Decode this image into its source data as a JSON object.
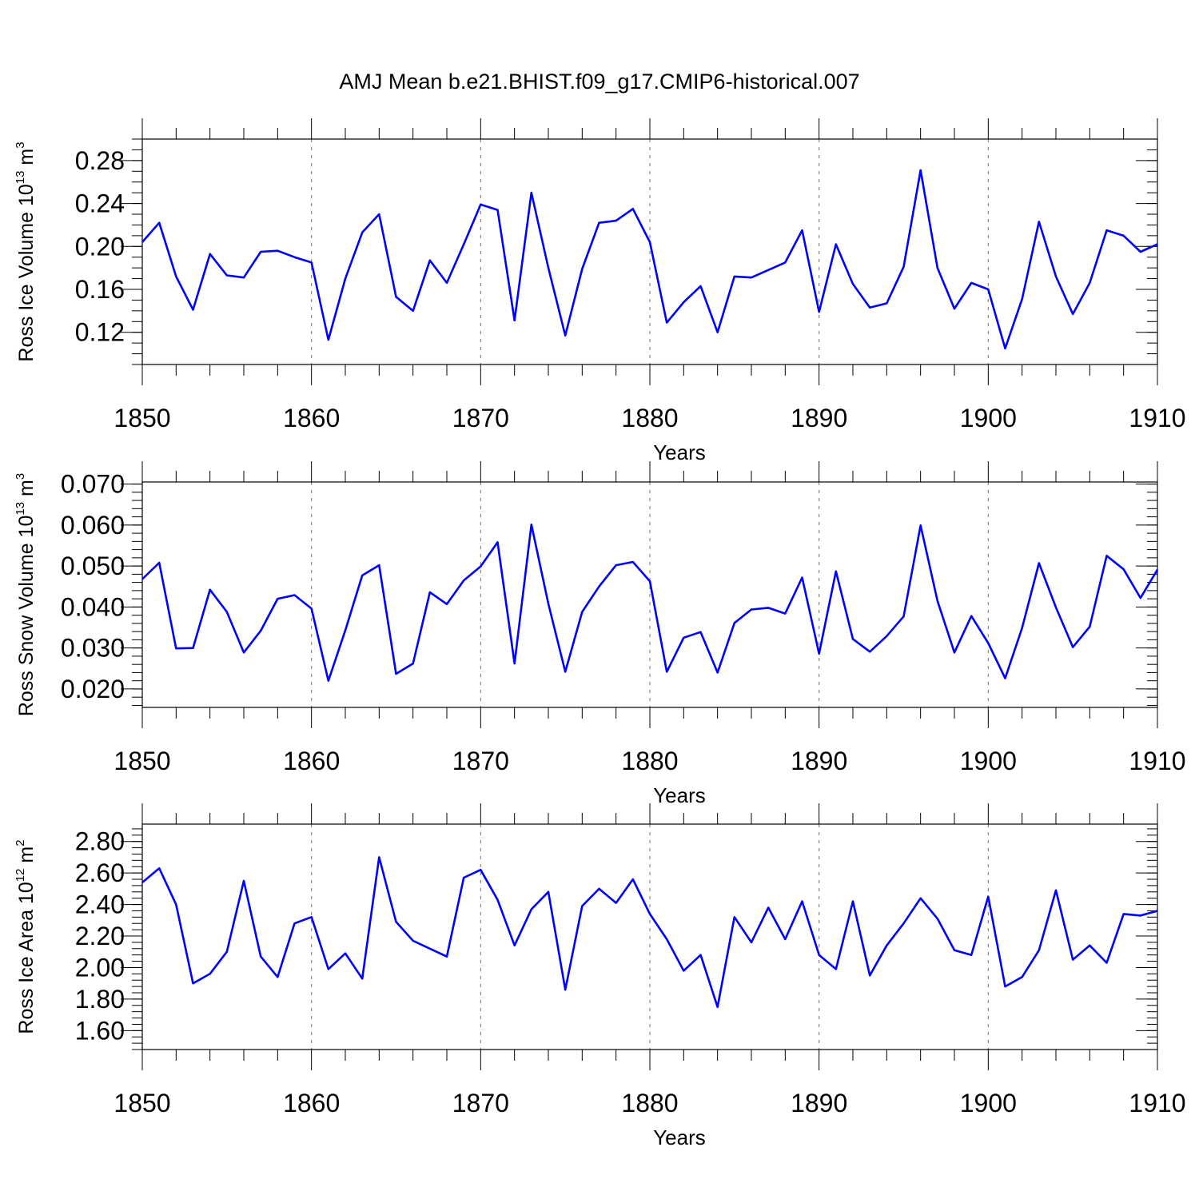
{
  "title": "AMJ Mean b.e21.BHIST.f09_g17.CMIP6-historical.007",
  "chart_data": [
    {
      "type": "line",
      "ylabel": {
        "base": "Ross Ice Volume 10",
        "sup1": "13",
        "mid": " m",
        "sup2": "3"
      },
      "xlabel": "Years",
      "xlim": [
        1850,
        1910
      ],
      "ylim": [
        0.09,
        0.3
      ],
      "y_major_ticks": [
        0.12,
        0.16,
        0.2,
        0.24,
        0.28
      ],
      "y_tick_labels": [
        "0.12",
        "0.16",
        "0.20",
        "0.24",
        "0.28"
      ],
      "y_minor_step": 0.01,
      "x_major_ticks": [
        1850,
        1860,
        1870,
        1880,
        1890,
        1900,
        1910
      ],
      "x_tick_labels": [
        "1850",
        "1860",
        "1870",
        "1880",
        "1890",
        "1900",
        "1910"
      ],
      "gridlines_x": [
        1860,
        1870,
        1880,
        1890,
        1900
      ],
      "color": "#0000ff",
      "x": [
        1850,
        1851,
        1852,
        1853,
        1854,
        1855,
        1856,
        1857,
        1858,
        1859,
        1860,
        1861,
        1862,
        1863,
        1864,
        1865,
        1866,
        1867,
        1868,
        1869,
        1870,
        1871,
        1872,
        1873,
        1874,
        1875,
        1876,
        1877,
        1878,
        1879,
        1880,
        1881,
        1882,
        1883,
        1884,
        1885,
        1886,
        1887,
        1888,
        1889,
        1890,
        1891,
        1892,
        1893,
        1894,
        1895,
        1896,
        1897,
        1898,
        1899,
        1900,
        1901,
        1902,
        1903,
        1904,
        1905,
        1906,
        1907,
        1908,
        1909,
        1910
      ],
      "y": [
        0.204,
        0.222,
        0.172,
        0.141,
        0.193,
        0.173,
        0.171,
        0.195,
        0.196,
        0.19,
        0.185,
        0.113,
        0.17,
        0.213,
        0.23,
        0.153,
        0.14,
        0.187,
        0.166,
        0.202,
        0.239,
        0.234,
        0.131,
        0.25,
        0.18,
        0.117,
        0.179,
        0.222,
        0.224,
        0.235,
        0.204,
        0.129,
        0.148,
        0.163,
        0.12,
        0.172,
        0.171,
        0.178,
        0.185,
        0.215,
        0.139,
        0.202,
        0.165,
        0.143,
        0.147,
        0.181,
        0.271,
        0.18,
        0.142,
        0.166,
        0.16,
        0.105,
        0.151,
        0.223,
        0.172,
        0.137,
        0.166,
        0.215,
        0.21,
        0.195,
        0.202
      ]
    },
    {
      "type": "line",
      "ylabel": {
        "base": "Ross Snow Volume 10",
        "sup1": "13",
        "mid": " m",
        "sup2": "3"
      },
      "xlabel": "Years",
      "xlim": [
        1850,
        1910
      ],
      "ylim": [
        0.0155,
        0.0705
      ],
      "y_major_ticks": [
        0.02,
        0.03,
        0.04,
        0.05,
        0.06,
        0.07
      ],
      "y_tick_labels": [
        "0.020",
        "0.030",
        "0.040",
        "0.050",
        "0.060",
        "0.070"
      ],
      "y_minor_step": 0.002,
      "x_major_ticks": [
        1850,
        1860,
        1870,
        1880,
        1890,
        1900,
        1910
      ],
      "x_tick_labels": [
        "1850",
        "1860",
        "1870",
        "1880",
        "1890",
        "1900",
        "1910"
      ],
      "gridlines_x": [
        1860,
        1870,
        1880,
        1890,
        1900
      ],
      "color": "#0000ff",
      "x": [
        1850,
        1851,
        1852,
        1853,
        1854,
        1855,
        1856,
        1857,
        1858,
        1859,
        1860,
        1861,
        1862,
        1863,
        1864,
        1865,
        1866,
        1867,
        1868,
        1869,
        1870,
        1871,
        1872,
        1873,
        1874,
        1875,
        1876,
        1877,
        1878,
        1879,
        1880,
        1881,
        1882,
        1883,
        1884,
        1885,
        1886,
        1887,
        1888,
        1889,
        1890,
        1891,
        1892,
        1893,
        1894,
        1895,
        1896,
        1897,
        1898,
        1899,
        1900,
        1901,
        1902,
        1903,
        1904,
        1905,
        1906,
        1907,
        1908,
        1909,
        1910
      ],
      "y": [
        0.0468,
        0.0508,
        0.0299,
        0.03,
        0.0442,
        0.0388,
        0.0289,
        0.0342,
        0.042,
        0.0429,
        0.0396,
        0.022,
        0.0343,
        0.0477,
        0.0502,
        0.0237,
        0.0262,
        0.0436,
        0.0407,
        0.0465,
        0.0499,
        0.0558,
        0.0262,
        0.0601,
        0.0408,
        0.0242,
        0.0388,
        0.045,
        0.0502,
        0.051,
        0.0463,
        0.0242,
        0.0325,
        0.0339,
        0.024,
        0.0361,
        0.0394,
        0.0398,
        0.0384,
        0.0472,
        0.0286,
        0.0487,
        0.0322,
        0.0291,
        0.0329,
        0.0377,
        0.0599,
        0.0415,
        0.0289,
        0.0378,
        0.0312,
        0.0226,
        0.0349,
        0.0507,
        0.0399,
        0.0302,
        0.0352,
        0.0525,
        0.0492,
        0.0422,
        0.0491
      ]
    },
    {
      "type": "line",
      "ylabel": {
        "base": "Ross Ice Area 10",
        "sup1": "12",
        "mid": " m",
        "sup2": "2"
      },
      "xlabel": "Years",
      "xlim": [
        1850,
        1910
      ],
      "ylim": [
        1.48,
        2.91
      ],
      "y_major_ticks": [
        1.6,
        1.8,
        2.0,
        2.2,
        2.4,
        2.6,
        2.8
      ],
      "y_tick_labels": [
        "1.60",
        "1.80",
        "2.00",
        "2.20",
        "2.40",
        "2.60",
        "2.80"
      ],
      "y_minor_step": 0.04,
      "x_major_ticks": [
        1850,
        1860,
        1870,
        1880,
        1890,
        1900,
        1910
      ],
      "x_tick_labels": [
        "1850",
        "1860",
        "1870",
        "1880",
        "1890",
        "1900",
        "1910"
      ],
      "gridlines_x": [
        1860,
        1870,
        1880,
        1890,
        1900
      ],
      "color": "#0000ff",
      "x": [
        1850,
        1851,
        1852,
        1853,
        1854,
        1855,
        1856,
        1857,
        1858,
        1859,
        1860,
        1861,
        1862,
        1863,
        1864,
        1865,
        1866,
        1867,
        1868,
        1869,
        1870,
        1871,
        1872,
        1873,
        1874,
        1875,
        1876,
        1877,
        1878,
        1879,
        1880,
        1881,
        1882,
        1883,
        1884,
        1885,
        1886,
        1887,
        1888,
        1889,
        1890,
        1891,
        1892,
        1893,
        1894,
        1895,
        1896,
        1897,
        1898,
        1899,
        1900,
        1901,
        1902,
        1903,
        1904,
        1905,
        1906,
        1907,
        1908,
        1909,
        1910
      ],
      "y": [
        2.54,
        2.63,
        2.4,
        1.9,
        1.96,
        2.1,
        2.55,
        2.07,
        1.94,
        2.28,
        2.32,
        1.99,
        2.09,
        1.93,
        2.7,
        2.29,
        2.17,
        2.12,
        2.07,
        2.57,
        2.62,
        2.43,
        2.14,
        2.37,
        2.48,
        1.86,
        2.39,
        2.5,
        2.41,
        2.56,
        2.34,
        2.18,
        1.98,
        2.08,
        1.75,
        2.32,
        2.16,
        2.38,
        2.18,
        2.42,
        2.08,
        1.99,
        2.42,
        1.95,
        2.14,
        2.28,
        2.44,
        2.31,
        2.11,
        2.08,
        2.45,
        1.88,
        1.94,
        2.11,
        2.49,
        2.05,
        2.14,
        2.03,
        2.34,
        2.33,
        2.36
      ]
    }
  ]
}
